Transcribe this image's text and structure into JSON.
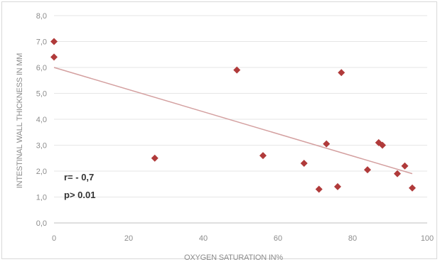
{
  "chart_data": {
    "type": "scatter",
    "title": "",
    "xlabel": "OXYGEN SATURATION IN%",
    "ylabel": "INTESTINAL WALL THICKNESS IN MM",
    "xlim": [
      0,
      100
    ],
    "ylim": [
      0,
      8
    ],
    "x_ticks": [
      "0",
      "20",
      "40",
      "60",
      "80",
      "100"
    ],
    "y_ticks": [
      "0,0",
      "1,0",
      "2,0",
      "3,0",
      "4,0",
      "5,0",
      "6,0",
      "7,0",
      "8,0"
    ],
    "grid": "horizontal",
    "legend": "none",
    "marker_color": "#b03a3a",
    "trendline_color": "#d4a0a0",
    "points": [
      {
        "x": 0,
        "y": 7.0
      },
      {
        "x": 0,
        "y": 6.4
      },
      {
        "x": 27,
        "y": 2.5
      },
      {
        "x": 49,
        "y": 5.9
      },
      {
        "x": 56,
        "y": 2.6
      },
      {
        "x": 67,
        "y": 2.3
      },
      {
        "x": 71,
        "y": 1.3
      },
      {
        "x": 73,
        "y": 3.05
      },
      {
        "x": 76,
        "y": 1.4
      },
      {
        "x": 77,
        "y": 5.8
      },
      {
        "x": 84,
        "y": 2.05
      },
      {
        "x": 87,
        "y": 3.1
      },
      {
        "x": 88,
        "y": 3.0
      },
      {
        "x": 92,
        "y": 1.9
      },
      {
        "x": 94,
        "y": 2.2
      },
      {
        "x": 96,
        "y": 1.35
      }
    ],
    "trendline": {
      "x": [
        0,
        96
      ],
      "y": [
        6.0,
        1.9
      ]
    },
    "annotations": [
      "r= - 0,7",
      "p> 0.01"
    ]
  }
}
